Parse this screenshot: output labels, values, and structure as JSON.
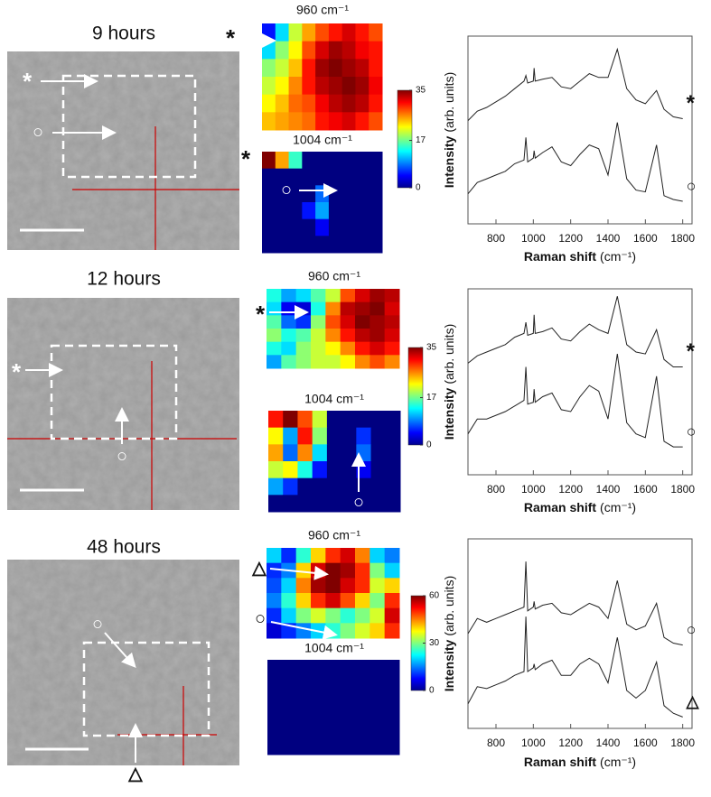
{
  "panels": [
    {
      "title": "9 hours",
      "maps": [
        {
          "label": "960 cm⁻¹",
          "values": [
            [
              5,
              12,
              20,
              25,
              28,
              30,
              32,
              30,
              28
            ],
            [
              12,
              18,
              22,
              28,
              32,
              34,
              33,
              31,
              30
            ],
            [
              18,
              20,
              24,
              30,
              34,
              35,
              34,
              33,
              30
            ],
            [
              20,
              22,
              26,
              30,
              33,
              34,
              35,
              34,
              31
            ],
            [
              22,
              24,
              27,
              28,
              31,
              33,
              34,
              33,
              30
            ],
            [
              24,
              25,
              26,
              27,
              30,
              31,
              32,
              30,
              28
            ]
          ]
        },
        {
          "label": "1004 cm⁻¹",
          "values": [
            [
              35,
              25,
              15,
              0,
              0,
              0,
              0,
              0,
              0
            ],
            [
              0,
              0,
              0,
              0,
              0,
              0,
              0,
              0,
              0
            ],
            [
              0,
              0,
              0,
              0,
              8,
              0,
              0,
              0,
              0
            ],
            [
              0,
              0,
              0,
              5,
              10,
              0,
              0,
              0,
              0
            ],
            [
              0,
              0,
              0,
              0,
              4,
              0,
              0,
              0,
              0
            ],
            [
              0,
              0,
              0,
              0,
              0,
              0,
              0,
              0,
              0
            ]
          ]
        }
      ],
      "colorbar": {
        "lim": [
          0,
          35
        ],
        "ticks": [
          0,
          17,
          35
        ]
      },
      "spectra": {
        "type": "line",
        "x": [
          650,
          700,
          750,
          800,
          850,
          900,
          950,
          960,
          970,
          1000,
          1004,
          1010,
          1050,
          1100,
          1150,
          1200,
          1250,
          1300,
          1350,
          1400,
          1450,
          1500,
          1550,
          1600,
          1660,
          1700,
          1750,
          1800
        ],
        "xlim": [
          650,
          1850
        ],
        "xticks": [
          800,
          1000,
          1200,
          1400,
          1600,
          1800
        ],
        "ylim": [
          0,
          10
        ],
        "xlabel": "Raman shift",
        "xlabel_unit": "(cm⁻¹)",
        "ylabel": "Intensity",
        "ylabel_unit": "(arb. units)",
        "series": [
          {
            "name": "*",
            "color": "#222222",
            "values": [
              5.5,
              6.0,
              6.2,
              6.5,
              6.8,
              7.2,
              7.6,
              7.9,
              7.5,
              7.6,
              8.3,
              7.6,
              7.7,
              7.8,
              7.3,
              7.2,
              7.6,
              8.0,
              7.8,
              7.8,
              9.3,
              7.2,
              6.6,
              6.4,
              7.1,
              6.1,
              5.7,
              5.6
            ]
          },
          {
            "name": "○",
            "color": "#222222",
            "values": [
              1.6,
              2.2,
              2.4,
              2.6,
              2.8,
              3.2,
              3.4,
              4.6,
              3.3,
              3.5,
              3.9,
              3.5,
              3.8,
              4.1,
              3.3,
              3.1,
              3.7,
              4.2,
              4.0,
              2.6,
              5.4,
              2.4,
              1.8,
              1.7,
              4.2,
              1.5,
              1.3,
              1.2
            ]
          }
        ]
      }
    },
    {
      "title": "12 hours",
      "maps": [
        {
          "label": "960 cm⁻¹",
          "values": [
            [
              14,
              10,
              12,
              16,
              20,
              28,
              32,
              34,
              33
            ],
            [
              12,
              4,
              3,
              14,
              26,
              33,
              34,
              35,
              32
            ],
            [
              16,
              8,
              6,
              18,
              28,
              32,
              35,
              34,
              33
            ],
            [
              18,
              14,
              16,
              20,
              26,
              30,
              33,
              34,
              32
            ],
            [
              14,
              12,
              18,
              20,
              22,
              26,
              30,
              32,
              30
            ],
            [
              10,
              16,
              18,
              20,
              20,
              22,
              26,
              28,
              26
            ]
          ]
        },
        {
          "label": "1004 cm⁻¹",
          "values": [
            [
              30,
              35,
              28,
              20,
              0,
              0,
              0,
              0,
              0
            ],
            [
              22,
              10,
              30,
              18,
              0,
              0,
              6,
              0,
              0
            ],
            [
              25,
              8,
              26,
              12,
              0,
              0,
              8,
              0,
              0
            ],
            [
              20,
              22,
              14,
              5,
              0,
              0,
              4,
              0,
              0
            ],
            [
              10,
              6,
              0,
              0,
              0,
              0,
              0,
              0,
              0
            ],
            [
              0,
              0,
              0,
              0,
              0,
              0,
              0,
              0,
              0
            ]
          ]
        }
      ],
      "colorbar": {
        "lim": [
          0,
          35
        ],
        "ticks": [
          0,
          17,
          35
        ]
      },
      "spectra": {
        "type": "line",
        "x": [
          650,
          700,
          750,
          800,
          850,
          900,
          950,
          960,
          970,
          1000,
          1004,
          1010,
          1050,
          1100,
          1150,
          1200,
          1250,
          1300,
          1350,
          1400,
          1450,
          1500,
          1550,
          1600,
          1660,
          1700,
          1750,
          1800
        ],
        "xlim": [
          650,
          1850
        ],
        "xticks": [
          800,
          1000,
          1200,
          1400,
          1600,
          1800
        ],
        "ylim": [
          0,
          10
        ],
        "xlabel": "Raman shift",
        "xlabel_unit": "(cm⁻¹)",
        "ylabel": "Intensity",
        "ylabel_unit": "(arb. units)",
        "series": [
          {
            "name": "*",
            "color": "#222222",
            "values": [
              6.0,
              6.4,
              6.6,
              6.8,
              7.0,
              7.4,
              7.6,
              8.2,
              7.5,
              7.6,
              8.6,
              7.6,
              7.7,
              7.9,
              7.3,
              7.2,
              7.7,
              8.1,
              7.8,
              7.6,
              9.6,
              7.0,
              6.6,
              6.5,
              7.8,
              6.2,
              5.8,
              5.8
            ]
          },
          {
            "name": "○",
            "color": "#222222",
            "values": [
              2.2,
              3.0,
              3.0,
              3.2,
              3.4,
              3.7,
              4.0,
              5.8,
              3.8,
              3.9,
              4.6,
              3.9,
              4.2,
              4.4,
              3.5,
              3.4,
              4.2,
              4.8,
              4.5,
              3.0,
              6.5,
              2.8,
              2.2,
              2.0,
              5.3,
              1.8,
              1.5,
              1.5
            ]
          }
        ]
      }
    },
    {
      "title": "48 hours",
      "maps": [
        {
          "label": "960 cm⁻¹",
          "values": [
            [
              20,
              10,
              25,
              40,
              50,
              55,
              45,
              20,
              15
            ],
            [
              10,
              15,
              40,
              55,
              60,
              58,
              50,
              30,
              20
            ],
            [
              12,
              20,
              45,
              58,
              60,
              55,
              50,
              35,
              40
            ],
            [
              15,
              25,
              40,
              50,
              55,
              48,
              40,
              30,
              50
            ],
            [
              10,
              20,
              30,
              35,
              30,
              25,
              30,
              35,
              55
            ],
            [
              5,
              10,
              15,
              20,
              25,
              30,
              35,
              40,
              50
            ]
          ]
        },
        {
          "label": "1004 cm⁻¹",
          "values": [
            [
              0,
              0,
              0,
              0,
              0,
              0,
              0,
              0,
              0
            ],
            [
              0,
              0,
              0,
              0,
              0,
              0,
              0,
              0,
              0
            ],
            [
              0,
              0,
              0,
              0,
              0,
              0,
              0,
              0,
              0
            ],
            [
              0,
              0,
              0,
              0,
              0,
              0,
              0,
              0,
              0
            ],
            [
              0,
              0,
              0,
              0,
              0,
              0,
              0,
              0,
              0
            ],
            [
              0,
              0,
              0,
              0,
              0,
              0,
              0,
              0,
              0
            ]
          ]
        }
      ],
      "colorbar": {
        "lim": [
          0,
          60
        ],
        "ticks": [
          0,
          30,
          60
        ]
      },
      "spectra": {
        "type": "line",
        "x": [
          650,
          700,
          750,
          800,
          850,
          900,
          950,
          960,
          970,
          1000,
          1004,
          1010,
          1050,
          1100,
          1150,
          1200,
          1250,
          1300,
          1350,
          1400,
          1450,
          1500,
          1550,
          1600,
          1660,
          1700,
          1750,
          1800
        ],
        "xlim": [
          650,
          1850
        ],
        "xticks": [
          800,
          1000,
          1200,
          1400,
          1600,
          1800
        ],
        "ylim": [
          0,
          10
        ],
        "xlabel": "Raman shift",
        "xlabel_unit": "(cm⁻¹)",
        "ylabel": "Intensity",
        "ylabel_unit": "(arb. units)",
        "series": [
          {
            "name": "○",
            "color": "#222222",
            "values": [
              5.0,
              5.8,
              5.6,
              5.8,
              6.0,
              6.2,
              6.4,
              8.8,
              6.2,
              6.4,
              6.7,
              6.3,
              6.5,
              6.6,
              6.1,
              6.0,
              6.3,
              6.6,
              6.4,
              5.8,
              7.8,
              5.5,
              5.2,
              5.4,
              6.6,
              4.8,
              4.5,
              4.4
            ]
          },
          {
            "name": "△",
            "color": "#222222",
            "values": [
              1.3,
              2.2,
              2.1,
              2.3,
              2.5,
              2.8,
              3.0,
              5.9,
              3.0,
              3.2,
              3.4,
              3.1,
              3.4,
              3.6,
              2.8,
              2.8,
              3.4,
              3.7,
              3.4,
              2.4,
              4.8,
              2.0,
              1.6,
              2.0,
              3.5,
              1.2,
              0.8,
              0.6
            ]
          }
        ]
      }
    }
  ]
}
